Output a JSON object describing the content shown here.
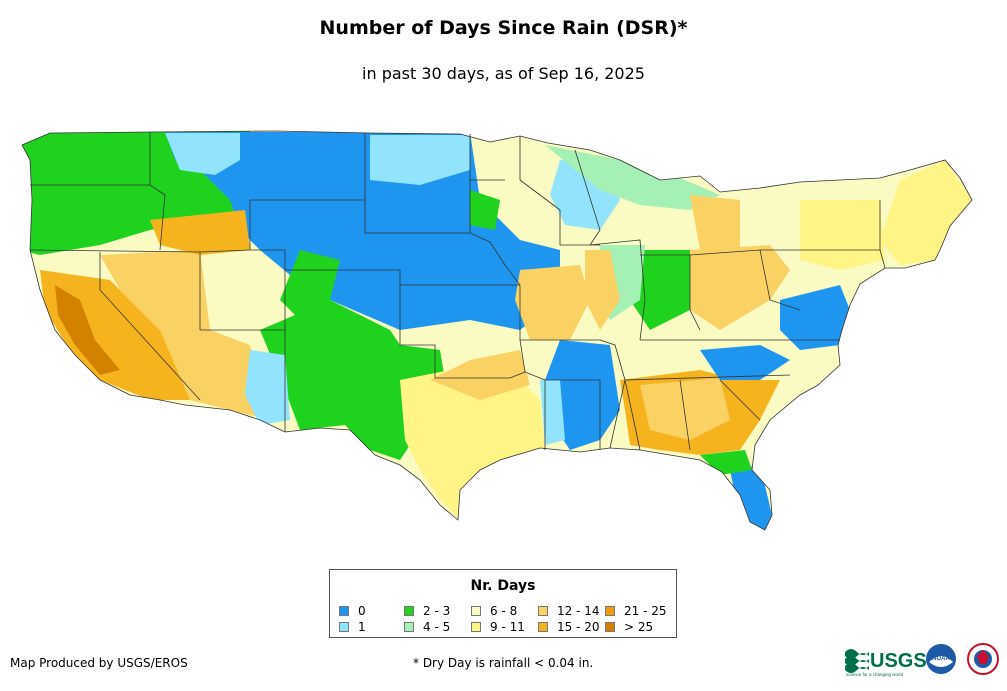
{
  "title": "Number of Days Since Rain (DSR)*",
  "subtitle": "in past 30 days, as of Sep 16, 2025",
  "legend": {
    "title": "Nr. Days",
    "items": [
      {
        "label": "0",
        "color": "#1e96f0"
      },
      {
        "label": "1",
        "color": "#91e4fb"
      },
      {
        "label": "2 - 3",
        "color": "#1ed21e"
      },
      {
        "label": "4 - 5",
        "color": "#a5f0b4"
      },
      {
        "label": "6 - 8",
        "color": "#fafac3"
      },
      {
        "label": "9 - 11",
        "color": "#fff587"
      },
      {
        "label": "12 - 14",
        "color": "#fad264"
      },
      {
        "label": "15 - 20",
        "color": "#f5b41e"
      },
      {
        "label": "21 - 25",
        "color": "#f09b0f"
      },
      {
        "label": "> 25",
        "color": "#d28200"
      }
    ]
  },
  "credit": "Map Produced by USGS/EROS",
  "footnote": "* Dry Day is rainfall < 0.04 in.",
  "logos": {
    "usgs_text": "USGS",
    "usgs_tagline": "science for a changing world",
    "noaa_text": "NOAA"
  }
}
